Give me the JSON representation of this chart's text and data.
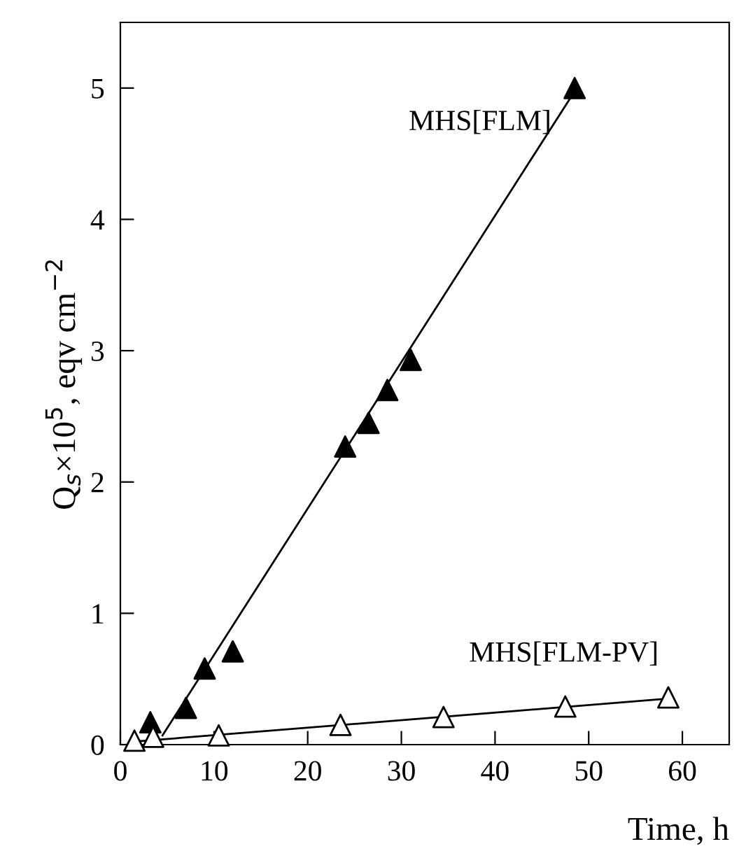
{
  "chart_data": {
    "type": "scatter",
    "xlabel": "Time, h",
    "ylabel": "Q$_{s}$×10$^{5}$, eqv cm$^{−2}$",
    "xlim": [
      0,
      65
    ],
    "ylim": [
      0,
      5.5
    ],
    "xticks": [
      0,
      10,
      20,
      30,
      40,
      50,
      60
    ],
    "yticks": [
      0,
      1,
      2,
      3,
      4,
      5
    ],
    "grid": false,
    "legend": false,
    "marker": "triangle",
    "series": [
      {
        "name": "MHS[FLM]",
        "color": "#000000",
        "x": [
          3.2,
          7,
          9,
          12,
          24,
          26.5,
          28.5,
          31,
          48.5
        ],
        "values": [
          0.17,
          0.28,
          0.58,
          0.71,
          2.27,
          2.45,
          2.7,
          2.93,
          5.0
        ]
      },
      {
        "name": "MHS[FLM-PV]",
        "color": "#ffffff",
        "x": [
          1.5,
          3.5,
          10.5,
          23.5,
          34.5,
          47.5,
          58.5
        ],
        "values": [
          0.03,
          0.06,
          0.07,
          0.15,
          0.21,
          0.29,
          0.36
        ]
      },
      {
        "type": "line",
        "color": "#000000",
        "marker": "none",
        "x": [
          4.5,
          48
        ],
        "values": [
          0.07,
          4.92
        ]
      },
      {
        "type": "line",
        "color": "#000000",
        "marker": "none",
        "x": [
          1,
          58.5
        ],
        "values": [
          0.02,
          0.35
        ]
      }
    ]
  }
}
